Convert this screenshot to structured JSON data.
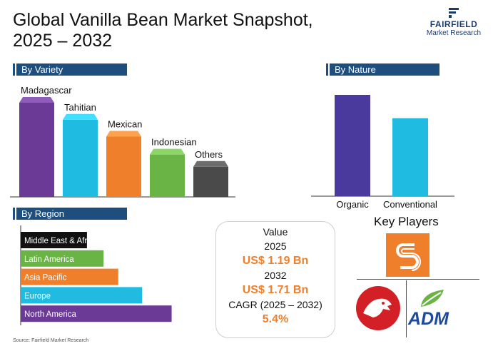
{
  "title": "Global Vanilla Bean Market Snapshot, 2025 – 2032",
  "logo": {
    "brand": "FAIRFIELD",
    "sub": "Market Research"
  },
  "sections": {
    "variety": "By Variety",
    "nature": "By Nature",
    "region": "By Region"
  },
  "chart_data": [
    {
      "type": "bar",
      "name": "By Variety",
      "categories": [
        "Madagascar",
        "Tahitian",
        "Mexican",
        "Indonesian",
        "Others"
      ],
      "values": [
        100,
        82,
        64,
        45,
        32
      ],
      "colors": [
        "#6a3a96",
        "#1fbbe0",
        "#f07f2b",
        "#6ab446",
        "#4a4a4a"
      ]
    },
    {
      "type": "bar",
      "name": "By Nature",
      "categories": [
        "Organic",
        "Conventional"
      ],
      "values": [
        100,
        77
      ],
      "colors": [
        "#4a3a9e",
        "#1fbbe0"
      ]
    },
    {
      "type": "bar",
      "orientation": "horizontal",
      "name": "By Region",
      "categories": [
        "Middle East & Africa",
        "Latin America",
        "Asia Pacific",
        "Europe",
        "North America"
      ],
      "values": [
        36,
        45,
        53,
        66,
        82
      ],
      "colors": [
        "#111111",
        "#6ab446",
        "#f07f2b",
        "#1fbbe0",
        "#6a3a96"
      ]
    }
  ],
  "value_card": {
    "label": "Value",
    "year1": "2025",
    "value1": "US$ 1.19 Bn",
    "year2": "2032",
    "value2": "US$ 1.71 Bn",
    "cagr_label": "CAGR (2025 – 2032)",
    "cagr_value": "5.4%"
  },
  "key_players": {
    "title": "Key Players",
    "logos": [
      "orange-s-logo",
      "red-dragon-logo",
      "ADM"
    ]
  },
  "source": "Source: Fairfield Market Research"
}
